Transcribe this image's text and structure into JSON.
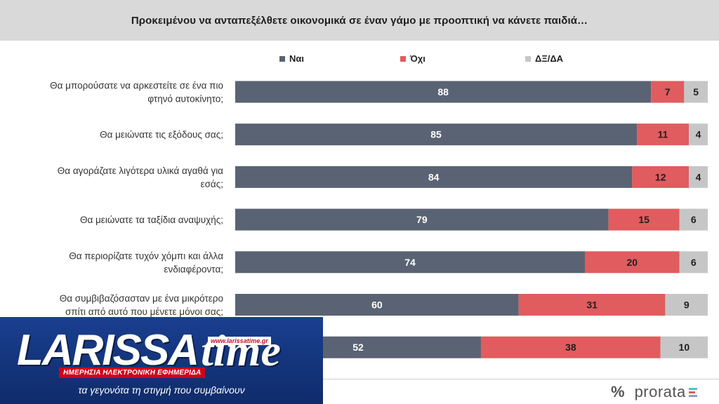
{
  "header": {
    "title": "Προκειμένου να ανταπεξέλθετε οικονομικά σε έναν γάμο με προοπτική να κάνετε παιδιά…"
  },
  "colors": {
    "yes": "#5a6373",
    "no": "#e05c5e",
    "dk": "#c6c6c6",
    "header_bg": "#d9d9d9"
  },
  "chart_data": {
    "type": "bar",
    "orientation": "horizontal",
    "stacked": true,
    "title": "Προκειμένου να ανταπεξέλθετε οικονομικά σε έναν γάμο με προοπτική να κάνετε παιδιά…",
    "legend_position": "top",
    "categories": [
      [
        "Θα μπορούσατε να αρκεστείτε σε ένα πιο",
        "φτηνό αυτοκίνητο;"
      ],
      [
        "Θα μειώνατε τις εξόδους σας;"
      ],
      [
        "Θα αγοράζατε λιγότερα υλικά αγαθά για",
        "εσάς;"
      ],
      [
        "Θα μειώνατε τα ταξίδια αναψυχής;"
      ],
      [
        "Θα περιορίζατε τυχόν χόμπι και άλλα",
        "ενδιαφέροντα;"
      ],
      [
        "Θα συμβιβαζόσασταν με ένα μικρότερο",
        "σπίτι από αυτό που μένετε μόνοι σας;"
      ],
      [
        ""
      ]
    ],
    "series": [
      {
        "name": "Ναι",
        "values": [
          88,
          85,
          84,
          79,
          74,
          60,
          52
        ]
      },
      {
        "name": "Όχι",
        "values": [
          7,
          11,
          12,
          15,
          20,
          31,
          38
        ]
      },
      {
        "name": "ΔΞ/ΔΑ",
        "values": [
          5,
          4,
          4,
          6,
          6,
          9,
          10
        ]
      }
    ],
    "xlim": [
      0,
      100
    ]
  },
  "banner": {
    "brand_left": "LARISSA",
    "brand_right": "time",
    "url": "www.larissatime.gr",
    "tagline": "ΗΜΕΡΗΣΙΑ ΗΛΕΚΤΡΟΝΙΚΗ ΕΦΗΜΕΡΙΔΑ",
    "slogan": "τα γεγονότα τη στιγμή που συμβαίνουν"
  },
  "brand": {
    "icon": "%",
    "name": "prorata"
  }
}
